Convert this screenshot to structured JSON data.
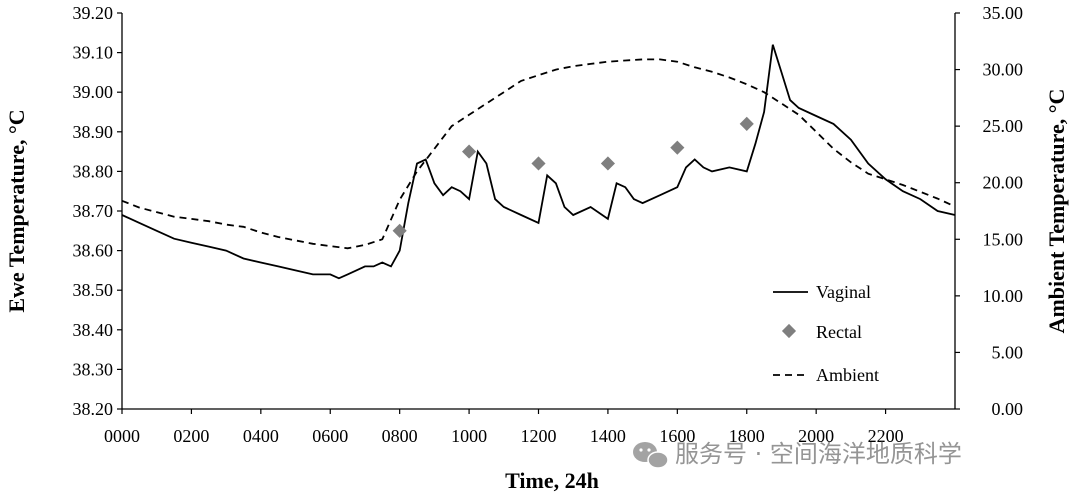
{
  "chart_data": {
    "type": "line",
    "xlabel": "Time, 24h",
    "ylabel_left": "Ewe Temperature, °C",
    "ylabel_right": "Ambient Temperature, °C",
    "x_tick_labels": [
      "0000",
      "0200",
      "0400",
      "0600",
      "0800",
      "1000",
      "1200",
      "1400",
      "1600",
      "1800",
      "2000",
      "2200"
    ],
    "xlim": [
      0,
      24
    ],
    "ylim_left": [
      38.2,
      39.2
    ],
    "ylim_right": [
      0,
      35
    ],
    "y_left_ticks": [
      "38.20",
      "38.30",
      "38.40",
      "38.50",
      "38.60",
      "38.70",
      "38.80",
      "38.90",
      "39.00",
      "39.10",
      "39.20"
    ],
    "y_right_ticks": [
      "0.00",
      "5.00",
      "10.00",
      "15.00",
      "20.00",
      "25.00",
      "30.00",
      "35.00"
    ],
    "grid": false,
    "legend_position": "bottom-right",
    "series": [
      {
        "name": "Vaginal",
        "axis": "left",
        "style": "solid",
        "x": [
          0,
          0.5,
          1,
          1.5,
          2,
          2.5,
          3,
          3.5,
          4,
          4.5,
          5,
          5.5,
          6,
          6.25,
          6.5,
          6.75,
          7,
          7.25,
          7.5,
          7.75,
          8,
          8.25,
          8.5,
          8.75,
          9,
          9.25,
          9.5,
          9.75,
          10,
          10.25,
          10.5,
          10.75,
          11,
          11.5,
          12,
          12.25,
          12.5,
          12.75,
          13,
          13.5,
          14,
          14.25,
          14.5,
          14.75,
          15,
          15.5,
          16,
          16.25,
          16.5,
          16.75,
          17,
          17.5,
          18,
          18.25,
          18.5,
          18.75,
          19,
          19.25,
          19.5,
          20,
          20.5,
          21,
          21.5,
          22,
          22.5,
          23,
          23.5,
          24
        ],
        "values": [
          38.69,
          38.67,
          38.65,
          38.63,
          38.62,
          38.61,
          38.6,
          38.58,
          38.57,
          38.56,
          38.55,
          38.54,
          38.54,
          38.53,
          38.54,
          38.55,
          38.56,
          38.56,
          38.57,
          38.56,
          38.6,
          38.72,
          38.82,
          38.83,
          38.77,
          38.74,
          38.76,
          38.75,
          38.73,
          38.85,
          38.82,
          38.73,
          38.71,
          38.69,
          38.67,
          38.79,
          38.77,
          38.71,
          38.69,
          38.71,
          38.68,
          38.77,
          38.76,
          38.73,
          38.72,
          38.74,
          38.76,
          38.81,
          38.83,
          38.81,
          38.8,
          38.81,
          38.8,
          38.87,
          38.95,
          39.12,
          39.05,
          38.98,
          38.96,
          38.94,
          38.92,
          38.88,
          38.82,
          38.78,
          38.75,
          38.73,
          38.7,
          38.69
        ]
      },
      {
        "name": "Rectal",
        "axis": "left",
        "style": "markers",
        "x": [
          8,
          10,
          12,
          14,
          16,
          18
        ],
        "values": [
          38.65,
          38.85,
          38.82,
          38.82,
          38.86,
          38.92
        ]
      },
      {
        "name": "Ambient",
        "axis": "right",
        "style": "dashed",
        "x": [
          0,
          0.5,
          1,
          1.5,
          2,
          2.5,
          3,
          3.5,
          4,
          4.5,
          5,
          5.5,
          6,
          6.5,
          7,
          7.5,
          8,
          8.5,
          9,
          9.5,
          10,
          10.5,
          11,
          11.5,
          12,
          12.5,
          13,
          13.5,
          14,
          14.5,
          15,
          15.5,
          16,
          16.5,
          17,
          17.5,
          18,
          18.5,
          19,
          19.5,
          20,
          20.5,
          21,
          21.5,
          22,
          22.5,
          23,
          23.5,
          24
        ],
        "values": [
          18.4,
          17.8,
          17.4,
          17.0,
          16.8,
          16.6,
          16.3,
          16.1,
          15.6,
          15.2,
          14.9,
          14.6,
          14.4,
          14.2,
          14.5,
          15.0,
          18.5,
          21.0,
          23.0,
          25.0,
          26.0,
          27.0,
          28.0,
          29.0,
          29.5,
          30.0,
          30.3,
          30.5,
          30.7,
          30.8,
          30.9,
          30.9,
          30.7,
          30.2,
          29.8,
          29.3,
          28.7,
          28.0,
          27.0,
          26.0,
          24.5,
          23.0,
          21.8,
          20.8,
          20.3,
          19.8,
          19.2,
          18.6,
          17.9
        ]
      }
    ]
  },
  "watermark": {
    "text": "服务号 · 空间海洋地质科学"
  }
}
